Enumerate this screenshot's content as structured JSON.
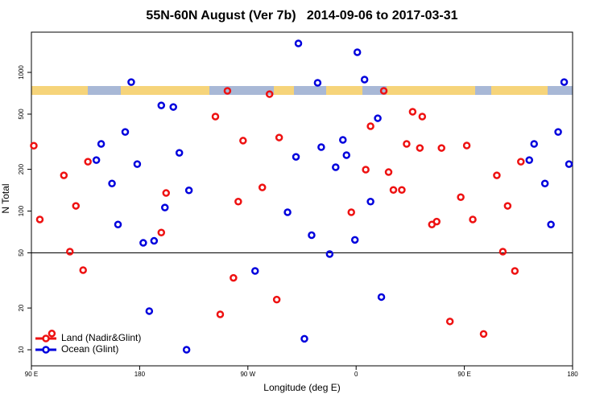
{
  "chart_data": {
    "type": "scatter",
    "title": "55N-60N August (Ver 7b)   2014-09-06 to 2017-03-31",
    "x_label": "Longitude (deg E)",
    "y_label": "N Total",
    "xlim": [
      90,
      540
    ],
    "xticks": [
      {
        "value": 90,
        "label": "90 E"
      },
      {
        "value": 180,
        "label": "180"
      },
      {
        "value": 270,
        "label": "90 W"
      },
      {
        "value": 360,
        "label": "0"
      },
      {
        "value": 450,
        "label": "90 E"
      },
      {
        "value": 540,
        "label": "180"
      }
    ],
    "ylim": [
      7.66,
      1950
    ],
    "yticks": [
      10,
      20,
      50,
      100,
      200,
      500,
      1000
    ],
    "log_y": true,
    "hline": 50,
    "legend": "bottom-left",
    "series": [
      {
        "name": "Land (Nadir&Glint)",
        "color": "#ee1111",
        "x": [
          92,
          97,
          107,
          117,
          122,
          127,
          133,
          137,
          198,
          202,
          243,
          247,
          253,
          258,
          262,
          266,
          282,
          288,
          294,
          296,
          356,
          368,
          372,
          383,
          387,
          391,
          398,
          402,
          407,
          413,
          415,
          423,
          427,
          431,
          438,
          447,
          452,
          457,
          466,
          477,
          482,
          486,
          492,
          497
        ],
        "values": [
          296,
          87,
          13.1,
          181,
          51,
          109,
          37.5,
          227,
          70,
          135,
          480,
          18,
          736,
          33,
          117,
          322,
          148,
          697,
          23,
          339,
          98,
          199,
          409,
          736,
          191,
          142,
          142,
          305,
          520,
          285,
          480,
          80,
          84,
          285,
          16,
          126,
          297,
          87,
          13,
          181,
          51,
          109,
          37,
          227
        ]
      },
      {
        "name": "Ocean (Glint)",
        "color": "#0000dd",
        "x": [
          144,
          148,
          157,
          162,
          168,
          173,
          178,
          183,
          188,
          192,
          198,
          201,
          208,
          213,
          219,
          221,
          276,
          303,
          310,
          312,
          317,
          323,
          328,
          331,
          338,
          343,
          349,
          352,
          359,
          361,
          367,
          372,
          378,
          381,
          504,
          508,
          517,
          522,
          528,
          533,
          537
        ],
        "values": [
          233,
          305,
          158,
          80,
          372,
          851,
          218,
          59,
          19,
          61,
          578,
          106,
          563,
          263,
          10,
          141,
          37,
          98,
          246,
          1618,
          12,
          67,
          841,
          289,
          49,
          207,
          326,
          253,
          62,
          1397,
          887,
          117,
          467,
          24,
          233,
          305,
          158,
          80,
          372,
          851,
          218
        ]
      }
    ]
  }
}
